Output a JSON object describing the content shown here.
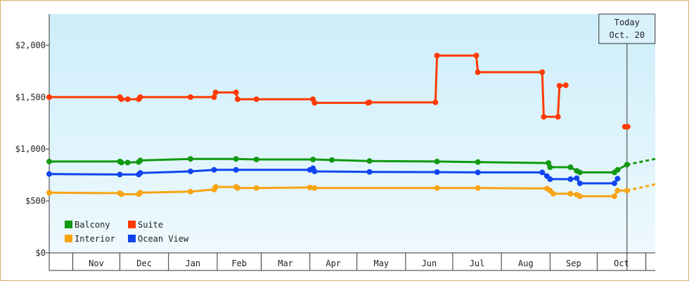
{
  "chart_data": {
    "type": "line",
    "title": "",
    "xlabel": "",
    "ylabel": "",
    "ylim": [
      0,
      2300
    ],
    "yticks": [
      0,
      500,
      1000,
      1500,
      2000
    ],
    "ytick_labels": [
      "$0",
      "$500",
      "$1,000",
      "$1,500",
      "$2,000"
    ],
    "x_domain": [
      "2024-10-17",
      "2025-11-07"
    ],
    "months": [
      {
        "label": "Nov",
        "start": "2024-11-01",
        "end": "2024-12-01"
      },
      {
        "label": "Dec",
        "start": "2024-12-01",
        "end": "2025-01-01"
      },
      {
        "label": "Jan",
        "start": "2025-01-01",
        "end": "2025-02-01"
      },
      {
        "label": "Feb",
        "start": "2025-02-01",
        "end": "2025-03-01"
      },
      {
        "label": "Mar",
        "start": "2025-03-01",
        "end": "2025-04-01"
      },
      {
        "label": "Apr",
        "start": "2025-04-01",
        "end": "2025-05-01"
      },
      {
        "label": "May",
        "start": "2025-05-01",
        "end": "2025-06-01"
      },
      {
        "label": "Jun",
        "start": "2025-06-01",
        "end": "2025-07-01"
      },
      {
        "label": "Jul",
        "start": "2025-07-01",
        "end": "2025-08-01"
      },
      {
        "label": "Aug",
        "start": "2025-08-01",
        "end": "2025-09-01"
      },
      {
        "label": "Sep",
        "start": "2025-09-01",
        "end": "2025-10-01"
      },
      {
        "label": "Oct",
        "start": "2025-10-01",
        "end": "2025-11-01"
      }
    ],
    "today": {
      "label": "Today",
      "date_label": "Oct. 20",
      "date": "2025-10-20"
    },
    "legend_position": "bottom-left",
    "grid": false,
    "background": {
      "top": "#cdeefa",
      "bottom": "#eef9fd"
    },
    "series": [
      {
        "name": "Suite",
        "color": "#ff3a00",
        "points": [
          [
            "2024-10-17",
            1500
          ],
          [
            "2024-12-01",
            1500
          ],
          [
            "2024-12-02",
            1480
          ],
          [
            "2024-12-06",
            1480
          ],
          [
            "2024-12-13",
            1480
          ],
          [
            "2024-12-14",
            1500
          ],
          [
            "2025-01-15",
            1500
          ],
          [
            "2025-01-30",
            1500
          ],
          [
            "2025-01-31",
            1545
          ],
          [
            "2025-02-13",
            1545
          ],
          [
            "2025-02-14",
            1480
          ],
          [
            "2025-02-26",
            1480
          ],
          [
            "2025-04-03",
            1480
          ],
          [
            "2025-04-04",
            1445
          ],
          [
            "2025-05-08",
            1445
          ],
          [
            "2025-05-09",
            1450
          ],
          [
            "2025-06-20",
            1450
          ],
          [
            "2025-06-21",
            1900
          ],
          [
            "2025-07-16",
            1900
          ],
          [
            "2025-07-17",
            1740
          ],
          [
            "2025-08-27",
            1740
          ],
          [
            "2025-08-28",
            1310
          ],
          [
            "2025-09-06",
            1310
          ],
          [
            "2025-09-07",
            1610
          ],
          [
            "2025-09-11",
            1615
          ]
        ],
        "gap_after": "2025-09-11",
        "isolated": [
          [
            "2025-10-20",
            1215
          ]
        ]
      },
      {
        "name": "Balcony",
        "color": "#119911",
        "points": [
          [
            "2024-10-17",
            880
          ],
          [
            "2024-12-01",
            880
          ],
          [
            "2024-12-02",
            870
          ],
          [
            "2024-12-06",
            870
          ],
          [
            "2024-12-13",
            875
          ],
          [
            "2024-12-14",
            890
          ],
          [
            "2025-01-15",
            905
          ],
          [
            "2025-02-13",
            905
          ],
          [
            "2025-02-26",
            900
          ],
          [
            "2025-04-03",
            900
          ],
          [
            "2025-04-15",
            895
          ],
          [
            "2025-05-09",
            885
          ],
          [
            "2025-06-21",
            880
          ],
          [
            "2025-07-17",
            875
          ],
          [
            "2025-08-31",
            865
          ],
          [
            "2025-09-01",
            825
          ],
          [
            "2025-09-14",
            825
          ],
          [
            "2025-09-18",
            790
          ],
          [
            "2025-09-20",
            775
          ],
          [
            "2025-10-12",
            775
          ],
          [
            "2025-10-14",
            800
          ],
          [
            "2025-10-20",
            850
          ]
        ],
        "forecast": [
          [
            "2025-10-20",
            850
          ],
          [
            "2025-11-07",
            905
          ]
        ]
      },
      {
        "name": "Ocean View",
        "color": "#1144ee",
        "points": [
          [
            "2024-10-17",
            760
          ],
          [
            "2024-12-01",
            755
          ],
          [
            "2024-12-13",
            755
          ],
          [
            "2024-12-14",
            770
          ],
          [
            "2025-01-15",
            785
          ],
          [
            "2025-01-30",
            800
          ],
          [
            "2025-02-13",
            800
          ],
          [
            "2025-04-01",
            800
          ],
          [
            "2025-04-03",
            815
          ],
          [
            "2025-04-04",
            785
          ],
          [
            "2025-05-09",
            780
          ],
          [
            "2025-06-21",
            778
          ],
          [
            "2025-07-17",
            775
          ],
          [
            "2025-08-27",
            775
          ],
          [
            "2025-08-30",
            740
          ],
          [
            "2025-09-01",
            710
          ],
          [
            "2025-09-14",
            710
          ],
          [
            "2025-09-18",
            720
          ],
          [
            "2025-09-20",
            670
          ],
          [
            "2025-10-12",
            670
          ],
          [
            "2025-10-14",
            715
          ]
        ]
      },
      {
        "name": "Interior",
        "color": "#f8a413",
        "points": [
          [
            "2024-10-17",
            580
          ],
          [
            "2024-12-01",
            575
          ],
          [
            "2024-12-02",
            565
          ],
          [
            "2024-12-13",
            565
          ],
          [
            "2024-12-14",
            580
          ],
          [
            "2025-01-15",
            590
          ],
          [
            "2025-01-30",
            610
          ],
          [
            "2025-01-31",
            635
          ],
          [
            "2025-02-13",
            635
          ],
          [
            "2025-02-14",
            625
          ],
          [
            "2025-02-26",
            625
          ],
          [
            "2025-04-01",
            630
          ],
          [
            "2025-04-04",
            625
          ],
          [
            "2025-06-21",
            625
          ],
          [
            "2025-07-17",
            625
          ],
          [
            "2025-08-30",
            620
          ],
          [
            "2025-09-01",
            600
          ],
          [
            "2025-09-03",
            570
          ],
          [
            "2025-09-14",
            570
          ],
          [
            "2025-09-18",
            560
          ],
          [
            "2025-09-20",
            545
          ],
          [
            "2025-10-12",
            545
          ],
          [
            "2025-10-14",
            600
          ],
          [
            "2025-10-20",
            600
          ]
        ],
        "forecast": [
          [
            "2025-10-20",
            600
          ],
          [
            "2025-11-07",
            660
          ]
        ]
      }
    ],
    "legend": [
      {
        "name": "Balcony",
        "color": "#119911"
      },
      {
        "name": "Suite",
        "color": "#ff3a00"
      },
      {
        "name": "Interior",
        "color": "#f8a413"
      },
      {
        "name": "Ocean View",
        "color": "#1144ee"
      }
    ]
  }
}
